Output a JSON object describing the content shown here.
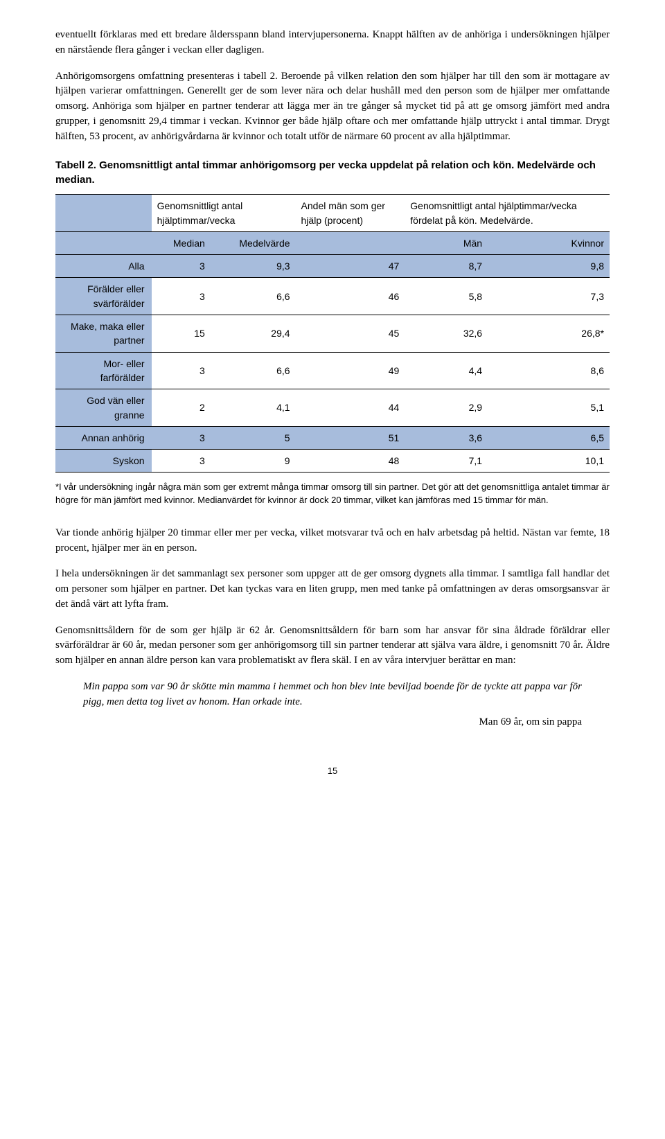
{
  "paragraphs": {
    "p1": "eventuellt förklaras med ett bredare åldersspann bland intervjupersonerna. Knappt hälften av de anhöriga i undersökningen hjälper en närstående flera gånger i veckan eller dagligen.",
    "p2": "Anhörigomsorgens omfattning presenteras i tabell 2. Beroende på vilken relation den som hjälper har till den som är mottagare av hjälpen varierar omfattningen. Generellt ger de som lever nära och delar hushåll med den person som de hjälper mer omfattande omsorg. Anhöriga som hjälper en partner tenderar att lägga mer än tre gånger så mycket tid på att ge omsorg jämfört med andra grupper, i genomsnitt 29,4 timmar i veckan. Kvinnor ger både hjälp oftare och mer omfattande hjälp uttryckt i antal timmar. Drygt hälften, 53 procent, av anhörigvårdarna är kvinnor och totalt utför de närmare 60 procent av alla hjälptimmar.",
    "p3": "Var tionde anhörig hjälper 20 timmar eller mer per vecka, vilket motsvarar två och en halv arbetsdag på heltid. Nästan var femte, 18 procent, hjälper mer än en person.",
    "p4": "I hela undersökningen är det sammanlagt sex personer som uppger att de ger omsorg dygnets alla timmar. I samtliga fall handlar det om personer som hjälper en partner. Det kan tyckas vara en liten grupp, men med tanke på omfattningen av deras omsorgsansvar är det ändå värt att lyfta fram.",
    "p5": "Genomsnittsåldern för de som ger hjälp är 62 år. Genomsnittsåldern för barn som har ansvar för sina åldrade föräldrar eller svärföräldrar är 60 år, medan personer som ger anhörigomsorg till sin partner tenderar att själva vara äldre, i genomsnitt 70 år. Äldre som hjälper en annan äldre person kan vara problematiskt av flera skäl. I en av våra intervjuer berättar en man:"
  },
  "table": {
    "caption": "Tabell 2. Genomsnittligt antal timmar anhörigomsorg per vecka uppdelat på relation och kön. Medelvärde och median.",
    "header1": {
      "c1": "",
      "c2": "Genomsnittligt antal hjälptimmar/vecka",
      "c3": "Andel män som ger hjälp (procent)",
      "c4": "Genomsnittligt antal hjälptimmar/vecka fördelat på kön. Medelvärde."
    },
    "header2": {
      "c1": "",
      "c2": "Median",
      "c3": "Medelvärde",
      "c4": "",
      "c5": "Män",
      "c6": "Kvinnor"
    },
    "rows": [
      {
        "label": "Alla",
        "median": "3",
        "mean": "9,3",
        "pct": "47",
        "men": "8,7",
        "women": "9,8",
        "highlight": true
      },
      {
        "label": "Förälder eller svärförälder",
        "median": "3",
        "mean": "6,6",
        "pct": "46",
        "men": "5,8",
        "women": "7,3",
        "highlight": false
      },
      {
        "label": "Make, maka eller partner",
        "median": "15",
        "mean": "29,4",
        "pct": "45",
        "men": "32,6",
        "women": "26,8*",
        "highlight": false
      },
      {
        "label": "Mor- eller farförälder",
        "median": "3",
        "mean": "6,6",
        "pct": "49",
        "men": "4,4",
        "women": "8,6",
        "highlight": false
      },
      {
        "label": "God vän eller granne",
        "median": "2",
        "mean": "4,1",
        "pct": "44",
        "men": "2,9",
        "women": "5,1",
        "highlight": false
      },
      {
        "label": "Annan anhörig",
        "median": "3",
        "mean": "5",
        "pct": "51",
        "men": "3,6",
        "women": "6,5",
        "highlight": true
      },
      {
        "label": "Syskon",
        "median": "3",
        "mean": "9",
        "pct": "48",
        "men": "7,1",
        "women": "10,1",
        "highlight": false
      }
    ],
    "footnote": "*I vår undersökning ingår några män som ger extremt många timmar omsorg till sin partner. Det gör att det genomsnittliga antalet timmar är högre för män jämfört med kvinnor. Medianvärdet för kvinnor är dock 20 timmar, vilket kan jämföras med 15 timmar för män."
  },
  "quote": {
    "text": "Min pappa som var 90 år skötte min mamma i hemmet och hon blev inte beviljad boende för de tyckte att pappa var för pigg, men detta tog livet av honom. Han orkade inte.",
    "attribution": "Man 69 år, om sin pappa"
  },
  "pageNumber": "15",
  "colors": {
    "table_highlight": "#a7bcdc"
  }
}
